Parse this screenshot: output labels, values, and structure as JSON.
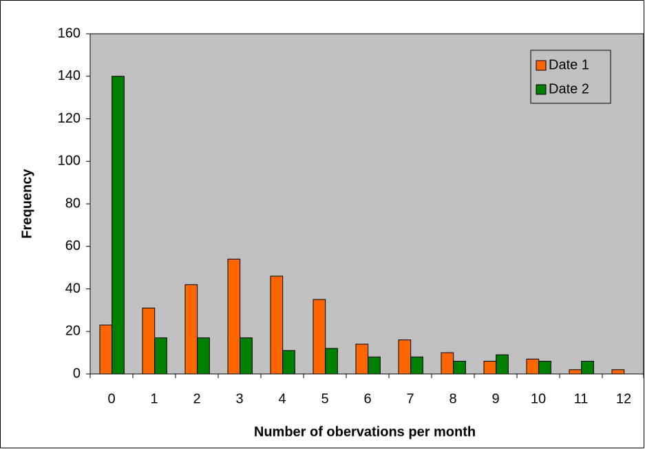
{
  "chart_data": {
    "type": "bar",
    "xlabel": "Number of obervations per month",
    "ylabel": "Frequency",
    "categories": [
      "0",
      "1",
      "2",
      "3",
      "4",
      "5",
      "6",
      "7",
      "8",
      "9",
      "10",
      "11",
      "12"
    ],
    "series": [
      {
        "name": "Date 1",
        "color": "#ff6600",
        "values": [
          23,
          31,
          42,
          54,
          46,
          35,
          14,
          16,
          10,
          6,
          7,
          2,
          2
        ]
      },
      {
        "name": "Date 2",
        "color": "#008000",
        "values": [
          140,
          17,
          17,
          17,
          11,
          12,
          8,
          8,
          6,
          9,
          6,
          6,
          0
        ]
      }
    ],
    "ylim": [
      0,
      160
    ],
    "yticks": [
      0,
      20,
      40,
      60,
      80,
      100,
      120,
      140,
      160
    ],
    "grid": false,
    "plot_background": "#c0c0c0",
    "legend_position": "upper right"
  }
}
